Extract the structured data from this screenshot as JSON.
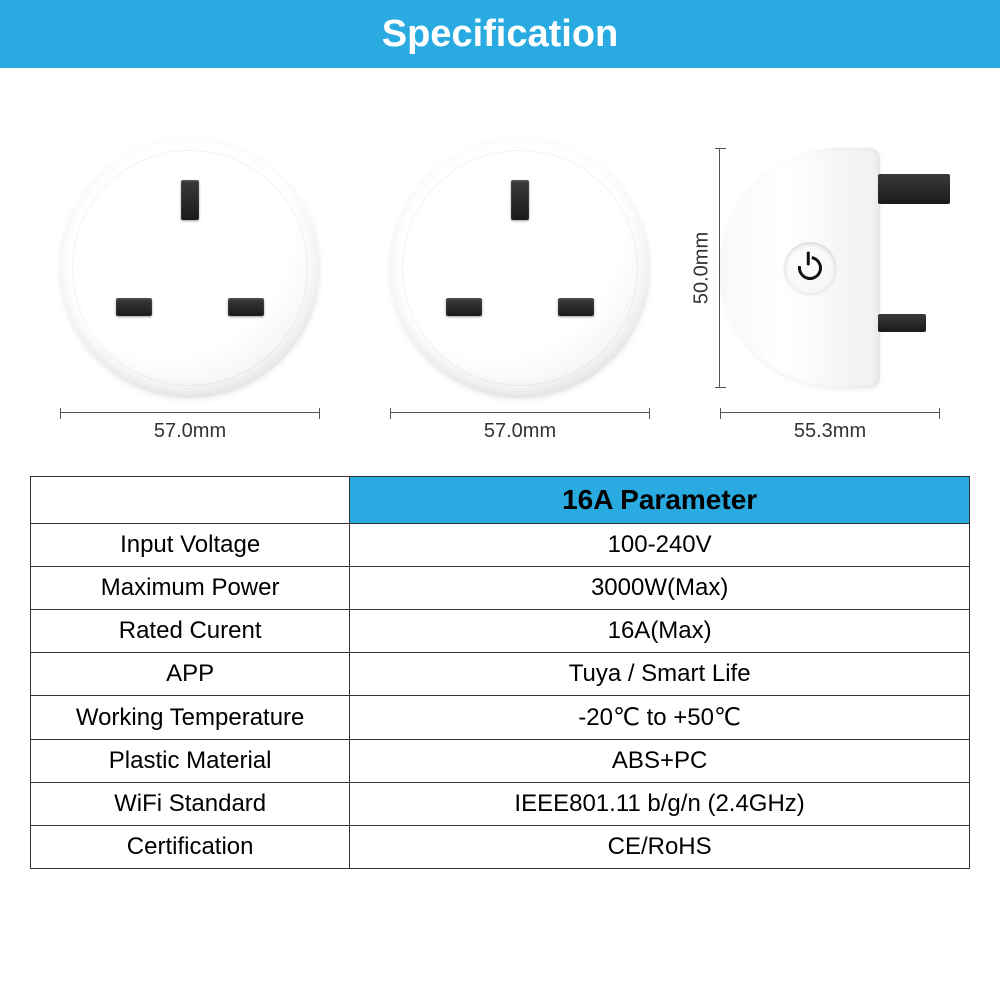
{
  "header": {
    "title": "Specification"
  },
  "colors": {
    "accent": "#29abe2",
    "border": "#333333",
    "text": "#333333",
    "bg": "#ffffff"
  },
  "dimensions": {
    "front1_width": "57.0mm",
    "front2_width": "57.0mm",
    "side_width": "55.3mm",
    "side_height": "50.0mm"
  },
  "table": {
    "header": "16A Parameter",
    "rows": [
      {
        "label": "Input Voltage",
        "value": "100-240V"
      },
      {
        "label": "Maximum Power",
        "value": "3000W(Max)"
      },
      {
        "label": "Rated Curent",
        "value": "16A(Max)"
      },
      {
        "label": "APP",
        "value": "Tuya / Smart Life"
      },
      {
        "label": "Working Temperature",
        "value": "-20℃ to +50℃"
      },
      {
        "label": "Plastic Material",
        "value": "ABS+PC"
      },
      {
        "label": "WiFi Standard",
        "value": "IEEE801.11 b/g/n (2.4GHz)"
      },
      {
        "label": "Certification",
        "value": "CE/RoHS"
      }
    ]
  }
}
